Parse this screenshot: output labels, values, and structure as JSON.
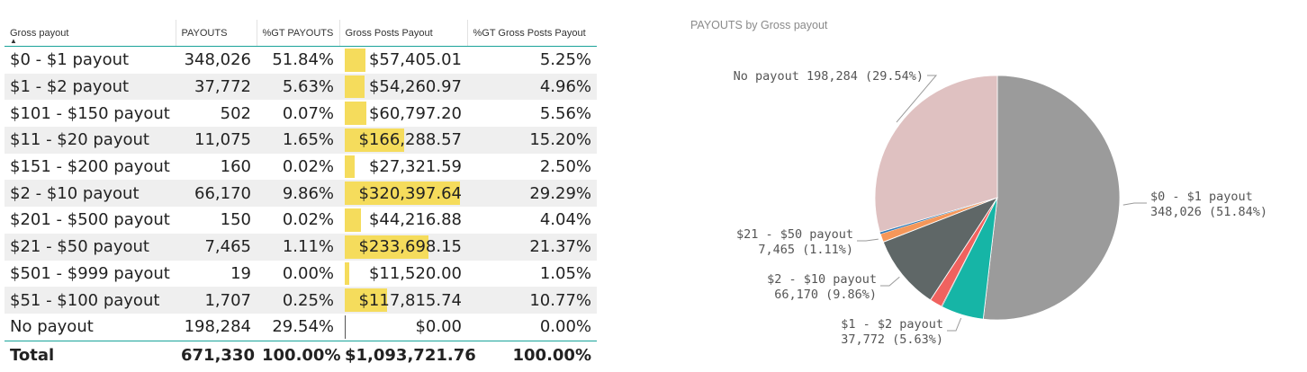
{
  "table": {
    "headers": [
      "Gross payout",
      "PAYOUTS",
      "%GT PAYOUTS",
      "Gross Posts Payout",
      "%GT Gross Posts Payout"
    ],
    "sort_indicator": "▲",
    "rows": [
      {
        "label": "$0 - $1 payout",
        "payouts": "348,026",
        "pct_payouts": "51.84%",
        "gross": "$57,405.01",
        "gross_value": 57405.01,
        "pct_gross": "5.25%"
      },
      {
        "label": "$1 - $2 payout",
        "payouts": "37,772",
        "pct_payouts": "5.63%",
        "gross": "$54,260.97",
        "gross_value": 54260.97,
        "pct_gross": "4.96%"
      },
      {
        "label": "$101 - $150 payout",
        "payouts": "502",
        "pct_payouts": "0.07%",
        "gross": "$60,797.20",
        "gross_value": 60797.2,
        "pct_gross": "5.56%"
      },
      {
        "label": "$11 - $20 payout",
        "payouts": "11,075",
        "pct_payouts": "1.65%",
        "gross": "$166,288.57",
        "gross_value": 166288.57,
        "pct_gross": "15.20%"
      },
      {
        "label": "$151  - $200 payout",
        "payouts": "160",
        "pct_payouts": "0.02%",
        "gross": "$27,321.59",
        "gross_value": 27321.59,
        "pct_gross": "2.50%"
      },
      {
        "label": "$2 - $10 payout",
        "payouts": "66,170",
        "pct_payouts": "9.86%",
        "gross": "$320,397.64",
        "gross_value": 320397.64,
        "pct_gross": "29.29%"
      },
      {
        "label": "$201  - $500 payout",
        "payouts": "150",
        "pct_payouts": "0.02%",
        "gross": "$44,216.88",
        "gross_value": 44216.88,
        "pct_gross": "4.04%"
      },
      {
        "label": "$21 - $50 payout",
        "payouts": "7,465",
        "pct_payouts": "1.11%",
        "gross": "$233,698.15",
        "gross_value": 233698.15,
        "pct_gross": "21.37%"
      },
      {
        "label": "$501  - $999 payout",
        "payouts": "19",
        "pct_payouts": "0.00%",
        "gross": "$11,520.00",
        "gross_value": 11520.0,
        "pct_gross": "1.05%"
      },
      {
        "label": "$51 - $100 payout",
        "payouts": "1,707",
        "pct_payouts": "0.25%",
        "gross": "$117,815.74",
        "gross_value": 117815.74,
        "pct_gross": "10.77%"
      },
      {
        "label": "No payout",
        "payouts": "198,284",
        "pct_payouts": "29.54%",
        "gross": "$0.00",
        "gross_value": 0,
        "pct_gross": "0.00%"
      }
    ],
    "total": {
      "label": "Total",
      "payouts": "671,330",
      "pct_payouts": "100.00%",
      "gross": "$1,093,721.76",
      "pct_gross": "100.00%"
    },
    "bar_color": "#f5dc5c"
  },
  "chart_data": {
    "type": "pie",
    "title": "PAYOUTS by Gross payout",
    "slices": [
      {
        "name": "$0 - $1 payout",
        "value": 348026,
        "pct": "51.84%",
        "color": "#9b9b9b",
        "label_line1": "$0 - $1 payout",
        "label_line2": "348,026 (51.84%)",
        "labeled": true
      },
      {
        "name": "$1 - $2 payout",
        "value": 37772,
        "pct": "5.63%",
        "color": "#16b5a6",
        "label_line1": "$1 - $2 payout",
        "label_line2": "37,772 (5.63%)",
        "labeled": true
      },
      {
        "name": "$101 - $150 payout",
        "value": 502,
        "pct": "0.07%",
        "color": "#333333",
        "labeled": false
      },
      {
        "name": "$11 - $20 payout",
        "value": 11075,
        "pct": "1.65%",
        "color": "#f0625f",
        "labeled": false
      },
      {
        "name": "$151  - $200 payout",
        "value": 160,
        "pct": "0.02%",
        "color": "#5a6b6b",
        "labeled": false
      },
      {
        "name": "$2 - $10 payout",
        "value": 66170,
        "pct": "9.86%",
        "color": "#5f6767",
        "label_line1": "$2 - $10 payout",
        "label_line2": "66,170 (9.86%)",
        "labeled": true
      },
      {
        "name": "$201  - $500 payout",
        "value": 150,
        "pct": "0.02%",
        "color": "#7a4a7a",
        "labeled": false
      },
      {
        "name": "$21 - $50 payout",
        "value": 7465,
        "pct": "1.11%",
        "color": "#f5975a",
        "label_line1": "$21 - $50 payout",
        "label_line2": "7,465 (1.11%)",
        "labeled": true
      },
      {
        "name": "$501  - $999 payout",
        "value": 19,
        "pct": "0.00%",
        "color": "#c7b34a",
        "labeled": false
      },
      {
        "name": "$51 - $100 payout",
        "value": 1707,
        "pct": "0.25%",
        "color": "#2f78b5",
        "labeled": false
      },
      {
        "name": "No payout",
        "value": 198284,
        "pct": "29.54%",
        "color": "#dfc1c1",
        "label_line1": "No payout 198,284 (29.54%)",
        "labeled": true
      }
    ]
  }
}
